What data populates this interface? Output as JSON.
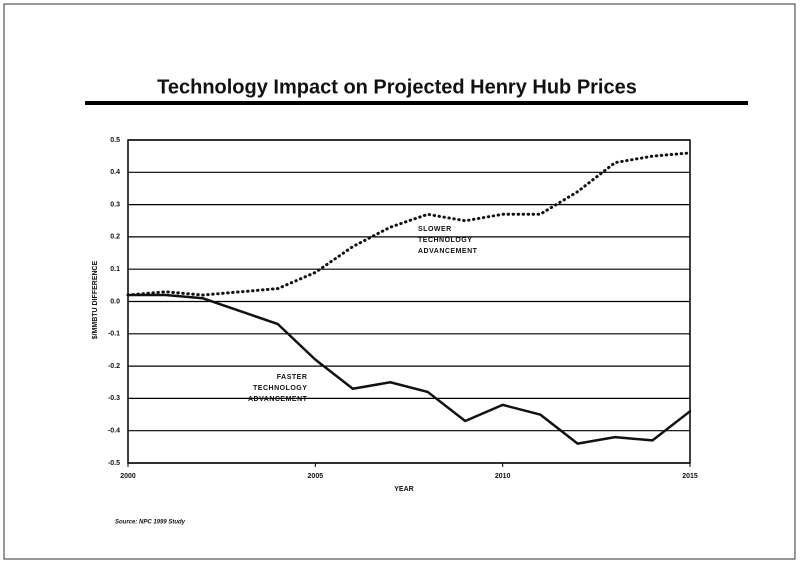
{
  "chart_data": {
    "type": "line",
    "title": "Technology Impact on Projected Henry Hub Prices",
    "xlabel": "YEAR",
    "ylabel": "$/MMBTU DIFFERENCE",
    "source": "Source: NPC 1999 Study",
    "x": [
      2000,
      2001,
      2002,
      2003,
      2004,
      2005,
      2006,
      2007,
      2008,
      2009,
      2010,
      2011,
      2012,
      2013,
      2014,
      2015
    ],
    "xlim": [
      2000,
      2015
    ],
    "xticks": [
      2000,
      2005,
      2010,
      2015
    ],
    "ylim": [
      -0.5,
      0.5
    ],
    "yticks": [
      0.5,
      0.4,
      0.3,
      0.2,
      0.1,
      {
        "value": 0,
        "label": "0.0"
      },
      -0.1,
      -0.2,
      -0.3,
      -0.4,
      -0.5
    ],
    "grid": true,
    "series": [
      {
        "name": "SLOWER TECHNOLOGY ADVANCEMENT",
        "color": "#111111",
        "style": "dotted",
        "values": [
          0.02,
          0.03,
          0.02,
          0.03,
          0.04,
          0.09,
          0.17,
          0.23,
          0.27,
          0.25,
          0.27,
          0.27,
          0.34,
          0.43,
          0.45,
          0.46
        ]
      },
      {
        "name": "FASTER TECHNOLOGY ADVANCEMENT",
        "color": "#111111",
        "style": "solid",
        "values": [
          0.02,
          0.02,
          0.01,
          -0.03,
          -0.07,
          -0.18,
          -0.27,
          -0.25,
          -0.28,
          -0.37,
          -0.32,
          -0.35,
          -0.44,
          -0.42,
          -0.43,
          -0.34
        ]
      }
    ]
  }
}
